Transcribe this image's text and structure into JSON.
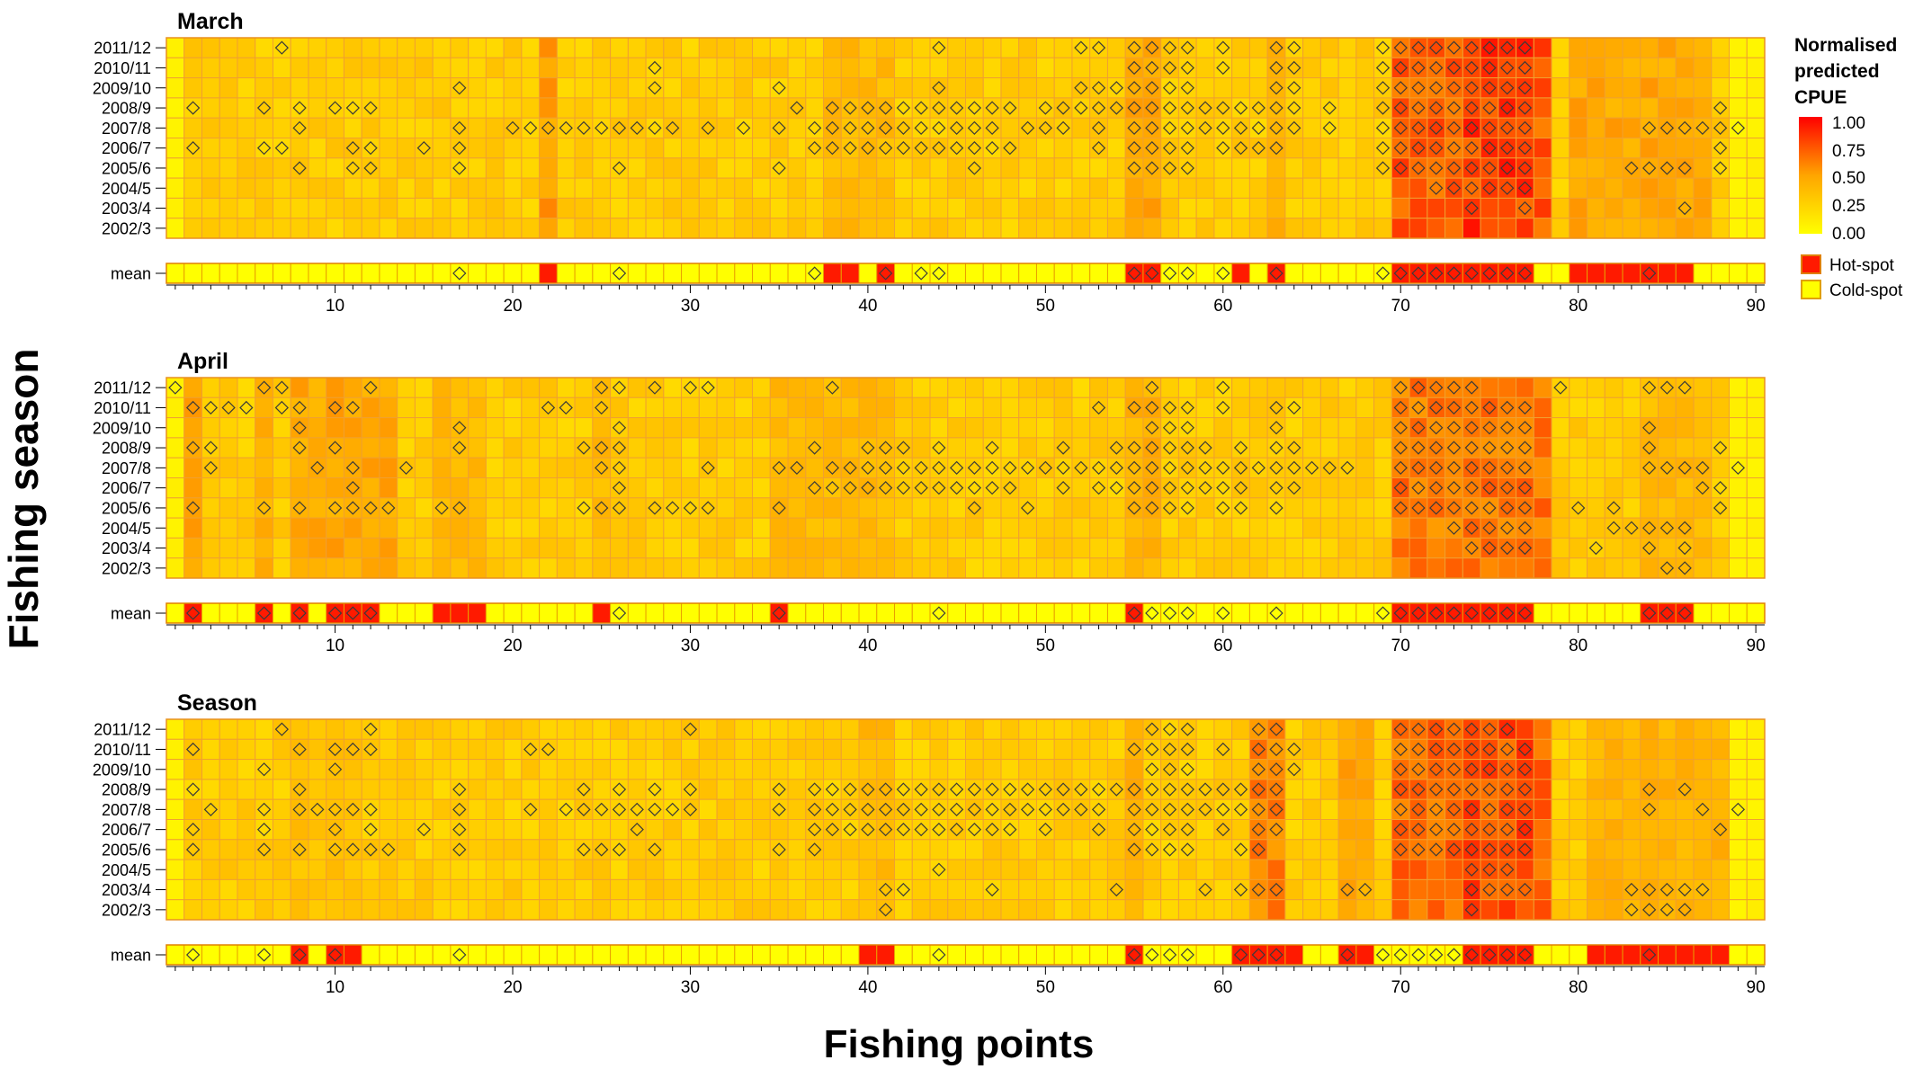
{
  "figure": {
    "y_axis_title": "Fishing season",
    "x_axis_title": "Fishing points"
  },
  "legend": {
    "title_lines": [
      "Normalised",
      "predicted",
      "CPUE"
    ],
    "ticks": [
      "1.00",
      "0.75",
      "0.50",
      "0.25",
      "0.00"
    ],
    "hot_label": "Hot-spot",
    "cold_label": "Cold-spot",
    "color_low": "#FFFF00",
    "color_mid": "#FFA500",
    "color_high": "#FF0000",
    "border_color": "#F0A030"
  },
  "chart_data": {
    "type": "heatmap",
    "seasons": [
      "2011/12",
      "2010/11",
      "2009/10",
      "2008/9",
      "2007/8",
      "2006/7",
      "2005/6",
      "2004/5",
      "2003/4",
      "2002/3"
    ],
    "mean_label": "mean",
    "n_points": 90,
    "x_ticks": [
      10,
      20,
      30,
      40,
      50,
      60,
      70,
      80,
      90
    ],
    "value_range": [
      0,
      1
    ],
    "panels": [
      {
        "title": "March",
        "hot_bands": [
          [
            70,
            78,
            0.85
          ],
          [
            74,
            77,
            0.95
          ],
          [
            55,
            56,
            0.55
          ],
          [
            63,
            63,
            0.5
          ],
          [
            80,
            87,
            0.55
          ],
          [
            22,
            22,
            0.6
          ],
          [
            38,
            41,
            0.45
          ]
        ],
        "diamonds": {
          "2011/12": [
            7,
            44,
            52,
            53,
            55,
            56,
            57,
            58,
            60,
            63,
            64,
            69,
            70,
            71,
            72,
            73,
            74,
            75,
            76,
            77
          ],
          "2010/11": [
            28,
            55,
            56,
            57,
            58,
            60,
            63,
            64,
            69,
            70,
            71,
            72,
            73,
            74,
            75,
            76,
            77
          ],
          "2009/10": [
            17,
            28,
            35,
            44,
            52,
            53,
            54,
            55,
            56,
            57,
            58,
            63,
            64,
            69,
            70,
            71,
            72,
            73,
            74,
            75,
            76,
            77
          ],
          "2008/9": [
            2,
            6,
            8,
            10,
            11,
            12,
            36,
            38,
            39,
            40,
            41,
            42,
            43,
            44,
            45,
            46,
            47,
            48,
            50,
            51,
            52,
            53,
            54,
            55,
            56,
            57,
            58,
            59,
            60,
            61,
            62,
            63,
            64,
            66,
            69,
            70,
            71,
            72,
            73,
            74,
            75,
            76,
            77,
            88
          ],
          "2007/8": [
            8,
            17,
            20,
            21,
            22,
            23,
            24,
            25,
            26,
            27,
            28,
            29,
            31,
            33,
            35,
            37,
            38,
            39,
            40,
            41,
            42,
            43,
            44,
            45,
            46,
            47,
            49,
            50,
            51,
            53,
            55,
            56,
            57,
            58,
            59,
            60,
            61,
            62,
            63,
            64,
            66,
            69,
            70,
            71,
            72,
            73,
            74,
            75,
            76,
            77,
            84,
            85,
            86,
            87,
            88,
            89
          ],
          "2006/7": [
            2,
            6,
            7,
            11,
            12,
            15,
            17,
            37,
            38,
            39,
            40,
            41,
            42,
            43,
            44,
            45,
            46,
            47,
            48,
            53,
            55,
            56,
            57,
            58,
            60,
            61,
            62,
            63,
            69,
            70,
            71,
            72,
            73,
            74,
            75,
            76,
            77,
            88
          ],
          "2005/6": [
            8,
            11,
            12,
            17,
            26,
            35,
            46,
            55,
            56,
            57,
            58,
            69,
            70,
            71,
            72,
            73,
            74,
            75,
            76,
            77,
            83,
            84,
            85,
            86,
            88
          ],
          "2004/5": [
            72,
            73,
            74,
            75,
            76,
            77
          ],
          "2003/4": [
            74,
            77,
            86
          ],
          "2002/3": []
        },
        "mean_hot": [
          22,
          38,
          39,
          41,
          55,
          56,
          61,
          63,
          70,
          71,
          72,
          73,
          74,
          75,
          76,
          77,
          80,
          81,
          82,
          83,
          84,
          85,
          86
        ],
        "mean_diamonds": [
          17,
          26,
          37,
          41,
          43,
          44,
          55,
          56,
          57,
          58,
          60,
          63,
          69,
          70,
          71,
          72,
          73,
          74,
          75,
          76,
          77,
          84
        ]
      },
      {
        "title": "April",
        "hot_bands": [
          [
            70,
            78,
            0.75
          ],
          [
            2,
            2,
            0.55
          ],
          [
            6,
            6,
            0.5
          ],
          [
            8,
            13,
            0.55
          ],
          [
            16,
            18,
            0.45
          ],
          [
            25,
            25,
            0.45
          ],
          [
            35,
            41,
            0.45
          ],
          [
            55,
            56,
            0.5
          ],
          [
            84,
            87,
            0.45
          ]
        ],
        "diamonds": {
          "2011/12": [
            1,
            6,
            7,
            12,
            25,
            26,
            28,
            30,
            31,
            38,
            56,
            60,
            70,
            71,
            72,
            73,
            74,
            79,
            84,
            85,
            86
          ],
          "2010/11": [
            2,
            3,
            4,
            5,
            7,
            8,
            10,
            11,
            22,
            23,
            25,
            53,
            55,
            56,
            57,
            58,
            60,
            63,
            64,
            70,
            71,
            72,
            73,
            74,
            75,
            76,
            77
          ],
          "2009/10": [
            8,
            17,
            26,
            56,
            57,
            58,
            63,
            70,
            71,
            72,
            73,
            74,
            75,
            76,
            77,
            84
          ],
          "2008/9": [
            2,
            3,
            8,
            10,
            17,
            24,
            25,
            26,
            37,
            40,
            41,
            42,
            44,
            47,
            51,
            54,
            55,
            56,
            57,
            58,
            59,
            61,
            63,
            64,
            70,
            71,
            72,
            73,
            74,
            75,
            76,
            77,
            84,
            88
          ],
          "2007/8": [
            3,
            9,
            11,
            14,
            25,
            26,
            31,
            35,
            36,
            38,
            39,
            40,
            41,
            42,
            43,
            44,
            45,
            46,
            47,
            48,
            49,
            50,
            51,
            52,
            53,
            54,
            55,
            56,
            57,
            58,
            59,
            60,
            61,
            62,
            63,
            64,
            65,
            66,
            67,
            70,
            71,
            72,
            73,
            74,
            75,
            76,
            77,
            84,
            85,
            86,
            87,
            89
          ],
          "2006/7": [
            11,
            26,
            37,
            38,
            39,
            40,
            41,
            42,
            43,
            44,
            45,
            46,
            47,
            48,
            51,
            53,
            54,
            55,
            56,
            57,
            58,
            59,
            60,
            61,
            63,
            64,
            70,
            71,
            72,
            73,
            74,
            75,
            76,
            77,
            87,
            88
          ],
          "2005/6": [
            2,
            6,
            8,
            10,
            11,
            12,
            13,
            16,
            17,
            24,
            25,
            26,
            28,
            29,
            30,
            31,
            35,
            46,
            49,
            55,
            56,
            57,
            58,
            60,
            61,
            63,
            70,
            71,
            72,
            73,
            74,
            75,
            76,
            77,
            80,
            82,
            88
          ],
          "2004/5": [
            73,
            74,
            75,
            76,
            77,
            82,
            83,
            84,
            85,
            86
          ],
          "2003/4": [
            74,
            75,
            76,
            77,
            81,
            84,
            86
          ],
          "2002/3": [
            85,
            86
          ]
        },
        "mean_hot": [
          2,
          6,
          8,
          10,
          11,
          12,
          16,
          17,
          18,
          25,
          35,
          55,
          70,
          71,
          72,
          73,
          74,
          75,
          76,
          77,
          84,
          85,
          86
        ],
        "mean_diamonds": [
          2,
          6,
          8,
          10,
          11,
          12,
          26,
          35,
          44,
          55,
          56,
          57,
          58,
          60,
          63,
          69,
          70,
          71,
          72,
          73,
          74,
          75,
          76,
          77,
          84,
          85,
          86
        ]
      },
      {
        "title": "Season",
        "hot_bands": [
          [
            70,
            78,
            0.8
          ],
          [
            62,
            63,
            0.7
          ],
          [
            67,
            68,
            0.55
          ],
          [
            74,
            77,
            0.9
          ],
          [
            8,
            11,
            0.4
          ],
          [
            40,
            41,
            0.45
          ],
          [
            55,
            55,
            0.5
          ],
          [
            81,
            88,
            0.5
          ]
        ],
        "diamonds": {
          "2011/12": [
            7,
            12,
            30,
            56,
            57,
            58,
            62,
            63,
            70,
            71,
            72,
            73,
            74,
            75,
            76
          ],
          "2010/11": [
            2,
            8,
            10,
            11,
            12,
            21,
            22,
            55,
            56,
            57,
            58,
            60,
            62,
            63,
            64,
            70,
            71,
            72,
            73,
            74,
            75,
            76,
            77
          ],
          "2009/10": [
            6,
            10,
            56,
            57,
            58,
            62,
            63,
            64,
            70,
            71,
            72,
            73,
            74,
            75,
            76,
            77
          ],
          "2008/9": [
            2,
            8,
            17,
            24,
            26,
            28,
            30,
            35,
            37,
            38,
            39,
            40,
            41,
            42,
            43,
            44,
            45,
            46,
            47,
            48,
            49,
            50,
            51,
            52,
            53,
            54,
            55,
            56,
            57,
            58,
            59,
            60,
            61,
            62,
            63,
            70,
            71,
            72,
            73,
            74,
            75,
            76,
            77,
            84,
            86
          ],
          "2007/8": [
            3,
            6,
            8,
            9,
            10,
            11,
            12,
            17,
            21,
            23,
            24,
            25,
            26,
            27,
            28,
            29,
            30,
            35,
            37,
            38,
            39,
            40,
            41,
            42,
            43,
            44,
            45,
            46,
            47,
            48,
            49,
            50,
            51,
            52,
            53,
            55,
            56,
            57,
            58,
            59,
            60,
            61,
            62,
            63,
            70,
            71,
            72,
            73,
            74,
            75,
            76,
            77,
            84,
            87,
            89
          ],
          "2006/7": [
            2,
            6,
            10,
            12,
            15,
            17,
            27,
            37,
            38,
            39,
            40,
            41,
            42,
            43,
            44,
            45,
            46,
            47,
            48,
            50,
            53,
            55,
            56,
            57,
            58,
            60,
            62,
            63,
            70,
            71,
            72,
            73,
            74,
            75,
            76,
            77,
            88
          ],
          "2005/6": [
            2,
            6,
            8,
            10,
            11,
            12,
            13,
            17,
            24,
            25,
            26,
            28,
            35,
            37,
            55,
            56,
            57,
            58,
            61,
            62,
            70,
            71,
            72,
            73,
            74,
            75,
            76,
            77
          ],
          "2004/5": [
            44,
            74,
            75,
            76
          ],
          "2003/4": [
            41,
            42,
            47,
            54,
            59,
            61,
            62,
            63,
            67,
            68,
            74,
            75,
            76,
            77,
            83,
            84,
            85,
            86,
            87
          ],
          "2002/3": [
            41,
            74,
            83,
            84,
            85,
            86
          ]
        },
        "mean_hot": [
          8,
          10,
          11,
          40,
          41,
          55,
          61,
          62,
          63,
          64,
          67,
          68,
          74,
          75,
          76,
          77,
          81,
          82,
          83,
          84,
          85,
          86,
          87,
          88
        ],
        "mean_diamonds": [
          2,
          6,
          8,
          10,
          17,
          44,
          55,
          56,
          57,
          58,
          61,
          62,
          63,
          67,
          69,
          70,
          71,
          72,
          73,
          74,
          75,
          76,
          77,
          84
        ]
      }
    ]
  }
}
